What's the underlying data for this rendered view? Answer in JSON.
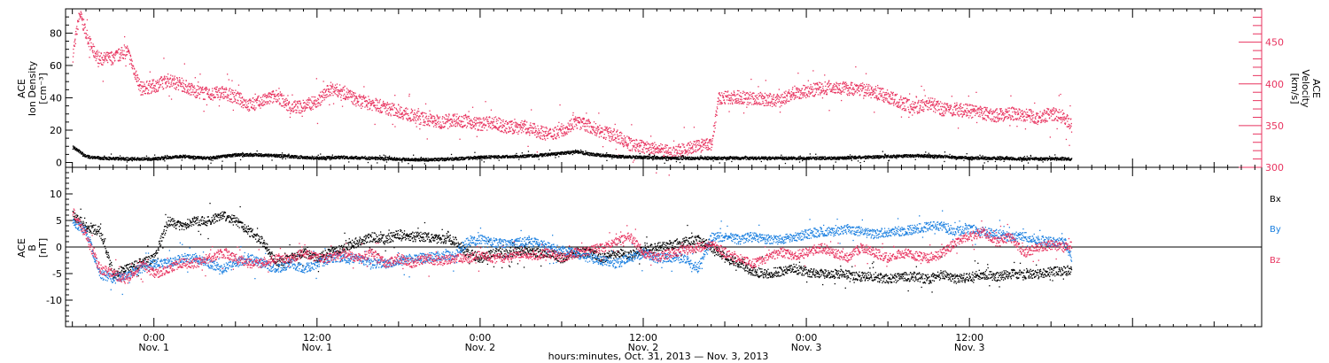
{
  "colors": {
    "black": "#000000",
    "red": "#e8335f",
    "blue": "#1a7fe0"
  },
  "chart_data": [
    {
      "type": "scatter",
      "panel": "plasma",
      "ylabel_lines": [
        "ACE",
        "Ion Density",
        "[cm⁻³]"
      ],
      "ylabel2_lines": [
        "ACE",
        "Velocity",
        "[km/s]"
      ],
      "ylim": [
        -3,
        95
      ],
      "ylim2": [
        300,
        490
      ],
      "yticks": [
        0,
        20,
        40,
        60,
        80
      ],
      "yticks2": [
        300,
        350,
        400,
        450
      ],
      "series": [
        {
          "axis": "left",
          "color": "#000000",
          "x": [
            -6,
            -5.5,
            -5,
            -4,
            -2,
            0,
            2,
            4,
            6,
            8,
            10,
            12,
            14,
            16,
            18,
            20,
            22,
            24,
            26,
            28,
            30,
            31,
            32,
            34,
            36,
            38,
            40,
            42,
            44,
            46,
            48,
            50,
            52,
            54,
            56,
            58,
            60,
            62,
            64,
            66,
            67.5
          ],
          "y": [
            10,
            7,
            4,
            3,
            2.5,
            2.5,
            4,
            3,
            5,
            5,
            4,
            3,
            3.5,
            3,
            2.5,
            2,
            2.5,
            3.5,
            4,
            4.5,
            6,
            7,
            5.5,
            4,
            3.5,
            3,
            3,
            3,
            3,
            3,
            3,
            3,
            3.5,
            4,
            4.5,
            4,
            3,
            3,
            2.5,
            2.5,
            2.5
          ]
        },
        {
          "axis": "right",
          "color": "#e8335f",
          "x": [
            -6,
            -5.5,
            -5,
            -4.5,
            -4,
            -3,
            -2,
            -1,
            0,
            1,
            2,
            3,
            4,
            5,
            6,
            7,
            8,
            9,
            10,
            11,
            12,
            13,
            14,
            15,
            16,
            17,
            18,
            19,
            20,
            21,
            22,
            23,
            24,
            25,
            26,
            27,
            28,
            29,
            30,
            31,
            32,
            33,
            34,
            35,
            36,
            37,
            38,
            39,
            40,
            41,
            41.5,
            42,
            43,
            44,
            45,
            46,
            47,
            48,
            49,
            50,
            51,
            52,
            53,
            54,
            55,
            56,
            57,
            58,
            59,
            60,
            61,
            62,
            63,
            64,
            65,
            66,
            67,
            67.5
          ],
          "y": [
            435,
            485,
            460,
            440,
            430,
            432,
            440,
            395,
            398,
            405,
            400,
            392,
            388,
            390,
            385,
            375,
            380,
            387,
            372,
            374,
            380,
            395,
            390,
            380,
            377,
            372,
            368,
            362,
            358,
            355,
            358,
            356,
            352,
            354,
            348,
            350,
            345,
            340,
            345,
            355,
            350,
            342,
            338,
            328,
            325,
            322,
            318,
            322,
            326,
            328,
            382,
            384,
            385,
            383,
            382,
            380,
            390,
            392,
            395,
            397,
            395,
            395,
            390,
            385,
            378,
            372,
            378,
            370,
            370,
            368,
            365,
            363,
            365,
            364,
            360,
            365,
            360,
            350
          ]
        }
      ]
    },
    {
      "type": "scatter",
      "panel": "magnetic_field",
      "ylabel_lines": [
        "ACE",
        "B",
        "[nT]"
      ],
      "ylim": [
        -15,
        15
      ],
      "yticks": [
        -10,
        -5,
        0,
        5,
        10
      ],
      "legend": [
        "Bx",
        "By",
        "Bz"
      ],
      "series": [
        {
          "name": "Bx",
          "color": "#000000",
          "x": [
            -6,
            -5,
            -4,
            -3,
            -2,
            -1,
            0,
            1,
            2,
            3,
            4,
            5,
            6,
            7,
            8,
            9,
            10,
            11,
            12,
            13,
            14,
            15,
            16,
            17,
            18,
            19,
            20,
            21,
            22,
            23,
            24,
            25,
            26,
            27,
            28,
            29,
            30,
            31,
            32,
            33,
            34,
            35,
            36,
            37,
            38,
            39,
            40,
            41,
            42,
            43,
            44,
            45,
            46,
            47,
            48,
            49,
            50,
            51,
            52,
            53,
            54,
            55,
            56,
            57,
            58,
            59,
            60,
            61,
            62,
            63,
            64,
            65,
            66,
            67,
            67.5
          ],
          "y": [
            6,
            4,
            3,
            -5,
            -4,
            -3,
            -2,
            5,
            4,
            5,
            5,
            6,
            5,
            3,
            1,
            -3,
            -2,
            -1,
            -2,
            -1,
            0,
            1,
            2,
            1.5,
            2.5,
            2,
            2,
            1.5,
            1.5,
            -1,
            -2,
            -1,
            -1,
            -0.5,
            -1,
            -1,
            -2,
            -1,
            -1,
            -2,
            -1,
            -1.5,
            -0.5,
            0,
            0.5,
            1,
            1.5,
            0,
            -2,
            -3,
            -4.5,
            -5,
            -4.5,
            -4,
            -4.5,
            -5,
            -5,
            -5,
            -5.5,
            -5.5,
            -6,
            -5.5,
            -5.5,
            -6,
            -5,
            -6,
            -5.5,
            -5,
            -5.5,
            -5,
            -5,
            -5,
            -4.5,
            -4.5,
            -4
          ]
        },
        {
          "name": "By",
          "color": "#1a7fe0",
          "x": [
            -6,
            -5,
            -4,
            -3,
            -2,
            -1,
            0,
            1,
            2,
            3,
            4,
            5,
            6,
            7,
            8,
            9,
            10,
            11,
            12,
            13,
            14,
            15,
            16,
            17,
            18,
            19,
            20,
            21,
            22,
            23,
            24,
            25,
            26,
            27,
            28,
            29,
            30,
            31,
            32,
            33,
            34,
            35,
            36,
            37,
            38,
            39,
            40,
            41,
            42,
            43,
            44,
            45,
            46,
            47,
            48,
            49,
            50,
            51,
            52,
            53,
            54,
            55,
            56,
            57,
            58,
            59,
            60,
            61,
            62,
            63,
            64,
            65,
            66,
            67,
            67.5
          ],
          "y": [
            5,
            3,
            -5,
            -6,
            -5,
            -4,
            -3,
            -3,
            -2,
            -2,
            -3,
            -4,
            -3,
            -2,
            -3,
            -4,
            -3,
            -4,
            -3,
            -2,
            -2,
            -2,
            -3,
            -3,
            -2.5,
            -2,
            -2,
            -1.5,
            -1.5,
            1,
            1.5,
            1,
            0.5,
            1,
            1,
            0,
            -0.5,
            -1,
            -2,
            -2.5,
            -3,
            -2,
            -1,
            -2,
            -2,
            -2,
            -4,
            2,
            2,
            1.5,
            2,
            1.5,
            1.5,
            2,
            2.5,
            3,
            3,
            3.5,
            3,
            2.5,
            3,
            3,
            3.5,
            4,
            4,
            3,
            3.5,
            3,
            2.5,
            2,
            2,
            1.5,
            1,
            1,
            -2
          ]
        },
        {
          "name": "Bz",
          "color": "#e8335f",
          "x": [
            -6,
            -5,
            -4,
            -3,
            -2,
            -1,
            0,
            1,
            2,
            3,
            4,
            5,
            6,
            7,
            8,
            9,
            10,
            11,
            12,
            13,
            14,
            15,
            16,
            17,
            18,
            19,
            20,
            21,
            22,
            23,
            24,
            25,
            26,
            27,
            28,
            29,
            30,
            31,
            32,
            33,
            34,
            35,
            36,
            37,
            38,
            39,
            40,
            41,
            42,
            43,
            44,
            45,
            46,
            47,
            48,
            49,
            50,
            51,
            52,
            53,
            54,
            55,
            56,
            57,
            58,
            59,
            60,
            61,
            62,
            63,
            64,
            65,
            66,
            67,
            67.5
          ],
          "y": [
            7,
            2,
            -4,
            -5,
            -6,
            -3,
            -5,
            -4,
            -3,
            -3,
            -2,
            -1,
            -2,
            -3,
            -3,
            -2,
            -2,
            -1,
            -2,
            -2,
            -1,
            -2,
            -1,
            -3,
            -2,
            -3,
            -2,
            -2.5,
            -2,
            -2,
            -1.5,
            -2,
            -2,
            -1,
            -1.5,
            -1,
            -2,
            -1,
            -0.5,
            0,
            1,
            2,
            -1,
            -2,
            -1,
            -0.5,
            0,
            0.5,
            -1,
            -2,
            -3,
            -2,
            -1,
            -1.5,
            -1,
            0,
            -1,
            -2,
            0,
            -1,
            -2,
            -1,
            -1.5,
            -2,
            -1,
            1,
            2,
            3,
            1,
            2,
            -1,
            0,
            0.5,
            0,
            0.5
          ]
        }
      ]
    }
  ],
  "x_axis": {
    "unit": "hours from 00:00 Nov. 1, 2013",
    "range": [
      -6.5,
      81.5
    ],
    "tick_labels": [
      {
        "x": 0,
        "time": "0:00",
        "date": "Nov. 1"
      },
      {
        "x": 12,
        "time": "12:00",
        "date": "Nov. 1"
      },
      {
        "x": 24,
        "time": "0:00",
        "date": "Nov. 2"
      },
      {
        "x": 36,
        "time": "12:00",
        "date": "Nov. 2"
      },
      {
        "x": 48,
        "time": "0:00",
        "date": "Nov. 3"
      },
      {
        "x": 60,
        "time": "12:00",
        "date": "Nov. 3"
      }
    ],
    "title": "hours:minutes, Oct. 31, 2013 — Nov.  3, 2013"
  }
}
